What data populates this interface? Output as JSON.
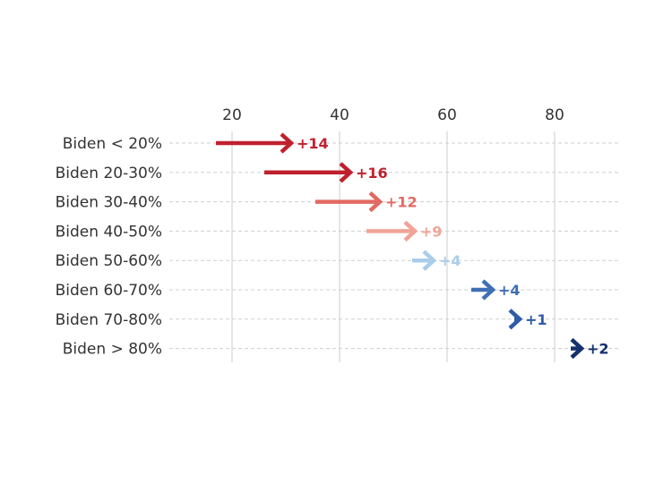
{
  "chart_data": {
    "type": "arrow",
    "title": "",
    "xlabel": "",
    "ylabel": "",
    "xlim": [
      10,
      90
    ],
    "xticks": [
      20,
      40,
      60,
      80
    ],
    "grid": true,
    "legend": "none",
    "categories": [
      "Biden < 20%",
      "Biden 20-30%",
      "Biden 30-40%",
      "Biden 40-50%",
      "Biden 50-60%",
      "Biden 60-70%",
      "Biden 70-80%",
      "Biden > 80%"
    ],
    "series": [
      {
        "values": [
          {
            "start": 17,
            "end": 31,
            "label": "+14",
            "color": "#c0202e"
          },
          {
            "start": 26,
            "end": 42,
            "label": "+16",
            "color": "#c0202e"
          },
          {
            "start": 35.5,
            "end": 47.5,
            "label": "+12",
            "color": "#e26a62"
          },
          {
            "start": 45,
            "end": 54,
            "label": "+9",
            "color": "#f0a396"
          },
          {
            "start": 53.5,
            "end": 57.5,
            "label": "+4",
            "color": "#a9cdea"
          },
          {
            "start": 64.5,
            "end": 68.5,
            "label": "+4",
            "color": "#3f6fb5"
          },
          {
            "start": 72.5,
            "end": 73.5,
            "label": "+1",
            "color": "#2e5ca8"
          },
          {
            "start": 83,
            "end": 85,
            "label": "+2",
            "color": "#14316e"
          }
        ]
      }
    ]
  }
}
